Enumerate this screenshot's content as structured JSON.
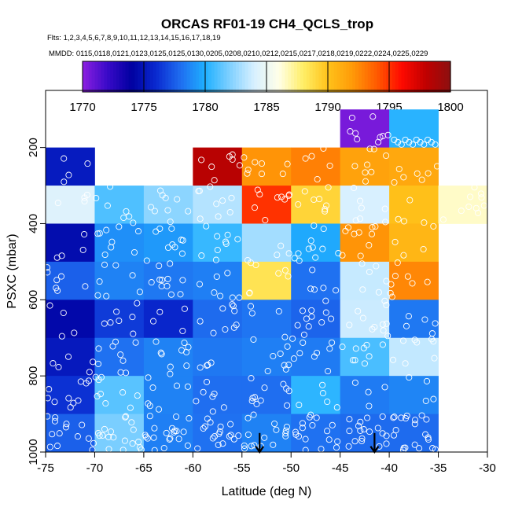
{
  "chart_data": {
    "type": "heatmap",
    "title": "ORCAS RF01-19 CH4_QCLS_trop",
    "flights_label": "Flts: 1,2,3,4,5,6,7,8,9,10,11,12,13,14,15,16,17,18,19",
    "dates_label": "MMDD: 0115,0118,0121,0123,0125,0125,0130,0205,0208,0210,0212,0215,0217,0218,0219,0222,0224,0225,0229",
    "xlabel": "Latitude (deg N)",
    "ylabel": "PSXC (mbar)",
    "xlim": [
      -75,
      -30
    ],
    "ylim": [
      1000,
      50
    ],
    "x_ticks": [
      -75,
      -70,
      -65,
      -60,
      -55,
      -50,
      -45,
      -40,
      -35,
      -30
    ],
    "x_tick_labels": [
      "-75",
      "-70",
      "-65",
      "-60",
      "-55",
      "-50",
      "-45",
      "-40",
      "-35",
      "-30"
    ],
    "y_ticks": [
      200,
      400,
      600,
      800,
      1000
    ],
    "y_tick_labels": [
      "200",
      "400",
      "600",
      "800",
      "1000"
    ],
    "colorbar": {
      "range": [
        1770,
        1800
      ],
      "ticks": [
        1770,
        1775,
        1780,
        1785,
        1790,
        1795,
        1800
      ],
      "tick_labels": [
        "1770",
        "1775",
        "1780",
        "1785",
        "1790",
        "1795",
        "1800"
      ],
      "stops": [
        {
          "v": 1770,
          "c": "#8c1fe0"
        },
        {
          "v": 1772,
          "c": "#3a0ac8"
        },
        {
          "v": 1774,
          "c": "#0000a0"
        },
        {
          "v": 1776,
          "c": "#0a2ad0"
        },
        {
          "v": 1778,
          "c": "#1f6ef0"
        },
        {
          "v": 1780,
          "c": "#1fb0ff"
        },
        {
          "v": 1782,
          "c": "#7fd0ff"
        },
        {
          "v": 1784,
          "c": "#d8f0ff"
        },
        {
          "v": 1786,
          "c": "#ffffe8"
        },
        {
          "v": 1788,
          "c": "#ffee66"
        },
        {
          "v": 1790,
          "c": "#ffc21a"
        },
        {
          "v": 1792,
          "c": "#ff9a08"
        },
        {
          "v": 1794,
          "c": "#ff5a00"
        },
        {
          "v": 1796,
          "c": "#ff0a00"
        },
        {
          "v": 1798,
          "c": "#c00000"
        },
        {
          "v": 1800,
          "c": "#8c1010"
        }
      ]
    },
    "lat_bins": [
      -75,
      -70,
      -65,
      -60,
      -55,
      -50,
      -45,
      -40,
      -35,
      -30
    ],
    "pressure_bins": [
      100,
      200,
      300,
      400,
      500,
      600,
      700,
      800,
      900,
      1000
    ],
    "cells": [
      {
        "lat": -42.5,
        "p": 150,
        "v": 1770.5
      },
      {
        "lat": -37.5,
        "p": 150,
        "v": 1780.2
      },
      {
        "lat": -72.5,
        "p": 250,
        "v": 1775.3
      },
      {
        "lat": -57.5,
        "p": 250,
        "v": 1798.3
      },
      {
        "lat": -52.5,
        "p": 250,
        "v": 1792.2
      },
      {
        "lat": -47.5,
        "p": 250,
        "v": 1792.8
      },
      {
        "lat": -42.5,
        "p": 250,
        "v": 1791.6
      },
      {
        "lat": -37.5,
        "p": 250,
        "v": 1791.3
      },
      {
        "lat": -72.5,
        "p": 350,
        "v": 1784.3
      },
      {
        "lat": -67.5,
        "p": 350,
        "v": 1781.0
      },
      {
        "lat": -62.5,
        "p": 350,
        "v": 1782.3
      },
      {
        "lat": -57.5,
        "p": 350,
        "v": 1783.2
      },
      {
        "lat": -52.5,
        "p": 350,
        "v": 1795.0
      },
      {
        "lat": -47.5,
        "p": 350,
        "v": 1789.2
      },
      {
        "lat": -42.5,
        "p": 350,
        "v": 1784.0
      },
      {
        "lat": -37.5,
        "p": 350,
        "v": 1790.1
      },
      {
        "lat": -32.5,
        "p": 350,
        "v": 1786.5
      },
      {
        "lat": -72.5,
        "p": 450,
        "v": 1774.6
      },
      {
        "lat": -67.5,
        "p": 450,
        "v": 1779.0
      },
      {
        "lat": -62.5,
        "p": 450,
        "v": 1779.3
      },
      {
        "lat": -57.5,
        "p": 450,
        "v": 1780.5
      },
      {
        "lat": -52.5,
        "p": 450,
        "v": 1782.8
      },
      {
        "lat": -47.5,
        "p": 450,
        "v": 1779.8
      },
      {
        "lat": -42.5,
        "p": 450,
        "v": 1792.2
      },
      {
        "lat": -37.5,
        "p": 450,
        "v": 1790.6
      },
      {
        "lat": -72.5,
        "p": 550,
        "v": 1777.6
      },
      {
        "lat": -67.5,
        "p": 550,
        "v": 1778.6
      },
      {
        "lat": -62.5,
        "p": 550,
        "v": 1778.3
      },
      {
        "lat": -57.5,
        "p": 550,
        "v": 1778.5
      },
      {
        "lat": -52.5,
        "p": 550,
        "v": 1788.5
      },
      {
        "lat": -47.5,
        "p": 550,
        "v": 1778.1
      },
      {
        "lat": -42.5,
        "p": 550,
        "v": 1783.6
      },
      {
        "lat": -37.5,
        "p": 550,
        "v": 1792.6
      },
      {
        "lat": -72.5,
        "p": 650,
        "v": 1774.4
      },
      {
        "lat": -67.5,
        "p": 650,
        "v": 1776.5
      },
      {
        "lat": -62.5,
        "p": 650,
        "v": 1775.8
      },
      {
        "lat": -57.5,
        "p": 650,
        "v": 1777.9
      },
      {
        "lat": -52.5,
        "p": 650,
        "v": 1778.2
      },
      {
        "lat": -47.5,
        "p": 650,
        "v": 1777.7
      },
      {
        "lat": -42.5,
        "p": 650,
        "v": 1783.7
      },
      {
        "lat": -37.5,
        "p": 650,
        "v": 1778.3
      },
      {
        "lat": -72.5,
        "p": 750,
        "v": 1775.2
      },
      {
        "lat": -67.5,
        "p": 750,
        "v": 1778.1
      },
      {
        "lat": -62.5,
        "p": 750,
        "v": 1778.6
      },
      {
        "lat": -57.5,
        "p": 750,
        "v": 1778.3
      },
      {
        "lat": -52.5,
        "p": 750,
        "v": 1778.5
      },
      {
        "lat": -47.5,
        "p": 750,
        "v": 1778.4
      },
      {
        "lat": -42.5,
        "p": 750,
        "v": 1780.9
      },
      {
        "lat": -37.5,
        "p": 750,
        "v": 1783.5
      },
      {
        "lat": -72.5,
        "p": 850,
        "v": 1776.2
      },
      {
        "lat": -67.5,
        "p": 850,
        "v": 1781.2
      },
      {
        "lat": -62.5,
        "p": 850,
        "v": 1778.6
      },
      {
        "lat": -57.5,
        "p": 850,
        "v": 1778.0
      },
      {
        "lat": -52.5,
        "p": 850,
        "v": 1778.0
      },
      {
        "lat": -47.5,
        "p": 850,
        "v": 1780.3
      },
      {
        "lat": -42.5,
        "p": 850,
        "v": 1778.4
      },
      {
        "lat": -37.5,
        "p": 850,
        "v": 1778.7
      },
      {
        "lat": -72.5,
        "p": 950,
        "v": 1777.6
      },
      {
        "lat": -67.5,
        "p": 950,
        "v": 1781.9
      },
      {
        "lat": -62.5,
        "p": 950,
        "v": 1778.5
      },
      {
        "lat": -57.5,
        "p": 950,
        "v": 1778.1
      },
      {
        "lat": -52.5,
        "p": 950,
        "v": 1778.6
      },
      {
        "lat": -47.5,
        "p": 950,
        "v": 1778.1
      },
      {
        "lat": -42.5,
        "p": 950,
        "v": 1777.9
      },
      {
        "lat": -37.5,
        "p": 950,
        "v": 1777.9
      }
    ],
    "arrows": [
      {
        "lat": -53.2,
        "label": "down-arrow"
      },
      {
        "lat": -41.5,
        "label": "down-arrow"
      }
    ]
  }
}
